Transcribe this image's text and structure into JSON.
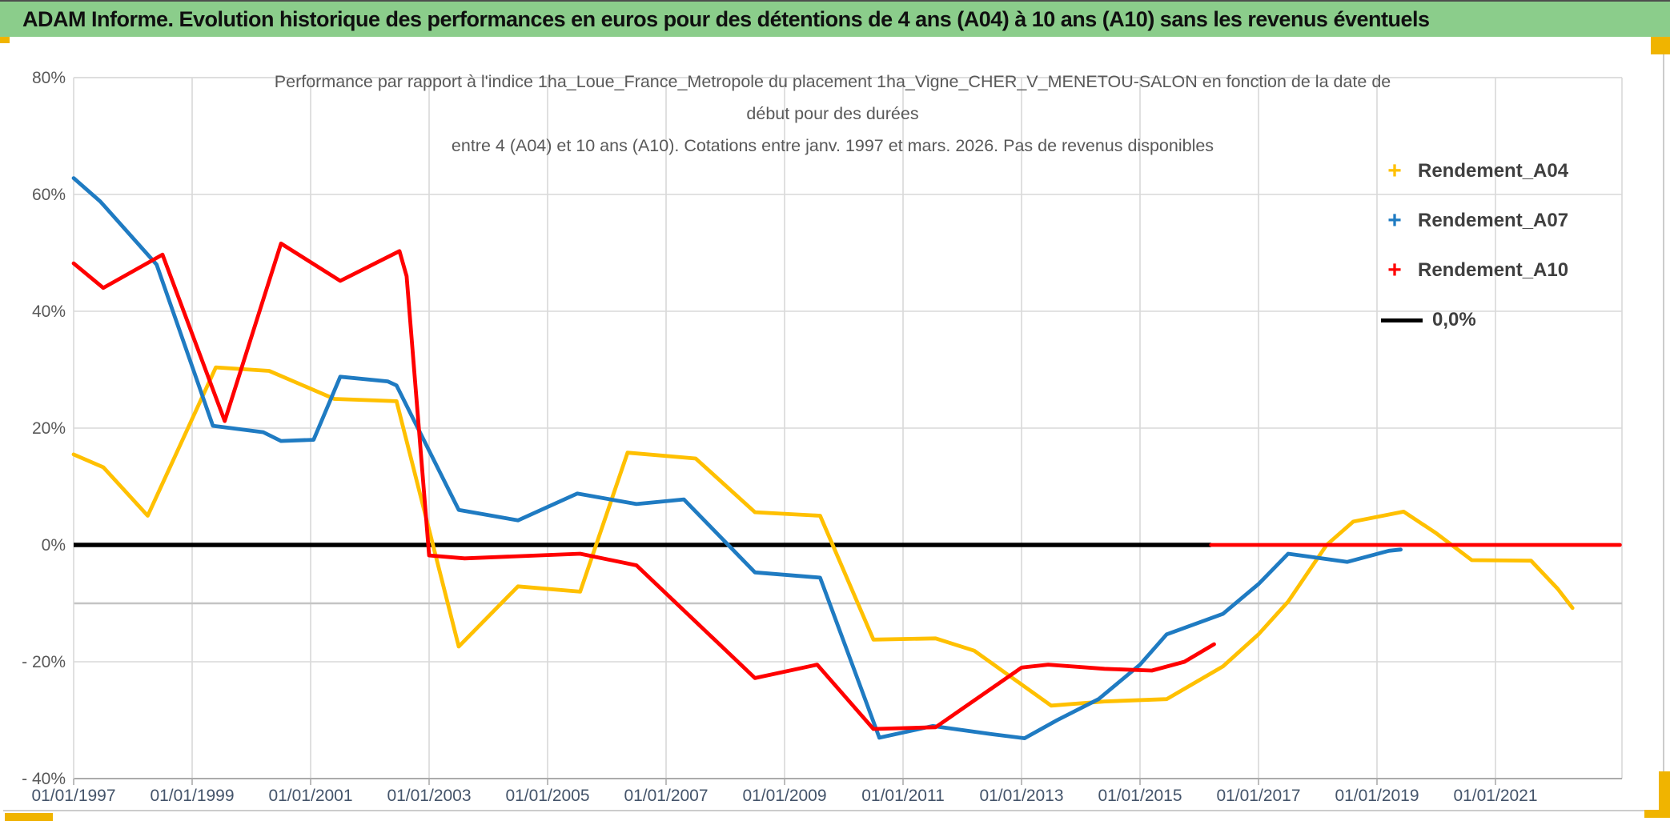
{
  "page": {
    "header": {
      "text": "ADAM Informe. Evolution historique des performances en euros pour des détentions de 4 ans (A04) à 10 ans (A10) sans les revenus éventuels"
    },
    "colors": {
      "header_bg": "#8BCD8B",
      "header_text": "#101010",
      "accent_gold": "#F0B400",
      "title_text": "#595959",
      "axis_text": "#595959",
      "date_text": "#44546A",
      "gridline": "#D9D9D9",
      "minor_line": "#C4C4C4",
      "axis_line": "#ABABAB",
      "zero_line": "#000000"
    }
  },
  "chart_data": {
    "type": "line",
    "title_lines": [
      "Performance par rapport à l'indice 1ha_Loue_France_Metropole  du placement 1ha_Vigne_CHER_V_MENETOU-SALON en fonction de la date de",
      "début pour des durées",
      "entre 4 (A04) et 10 ans (A10). Cotations entre janv. 1997 et mars. 2026. Pas de revenus disponibles"
    ],
    "xlabel": "",
    "ylabel": "",
    "x_tick_years": [
      1997,
      1999,
      2001,
      2003,
      2005,
      2007,
      2009,
      2011,
      2013,
      2015,
      2017,
      2019,
      2021
    ],
    "x_tick_labels": [
      "01/01/1997",
      "01/01/1999",
      "01/01/2001",
      "01/01/2003",
      "01/01/2005",
      "01/01/2007",
      "01/01/2009",
      "01/01/2011",
      "01/01/2013",
      "01/01/2015",
      "01/01/2017",
      "01/01/2019",
      "01/01/2021"
    ],
    "y_ticks": [
      {
        "value": 80,
        "label": "80%"
      },
      {
        "value": 60,
        "label": "60%"
      },
      {
        "value": 40,
        "label": "40%"
      },
      {
        "value": 20,
        "label": "20%"
      },
      {
        "value": 0,
        "label": "0%"
      },
      {
        "value": -20,
        "label": "- 20%"
      },
      {
        "value": -40,
        "label": "- 40%"
      }
    ],
    "ylim": [
      -40,
      80
    ],
    "xlim_years": [
      1997.0,
      2023.15
    ],
    "gridlines_pct": [
      80,
      60,
      40,
      20,
      -20
    ],
    "minor_line_pct": -10,
    "axis_bottom_pct": -40,
    "grid_on": true,
    "legend_position": "right",
    "zero_reference": {
      "label": "0,0%",
      "black_segment_end_year": 2016.2
    },
    "legend": [
      {
        "label": "Rendement_A04",
        "marker": "+",
        "color": "#FFC000"
      },
      {
        "label": "Rendement_A07",
        "marker": "+",
        "color": "#1F7BC2"
      },
      {
        "label": "Rendement_A10",
        "marker": "+",
        "color": "#FF0000"
      },
      {
        "label": "0,0%",
        "marker": "line",
        "color": "#000000"
      }
    ],
    "series": [
      {
        "name": "Rendement_A04",
        "color": "#FFC000",
        "points": [
          [
            1997.0,
            15.5
          ],
          [
            1997.5,
            13.3
          ],
          [
            1998.25,
            5.0
          ],
          [
            1999.4,
            30.4
          ],
          [
            2000.3,
            29.8
          ],
          [
            2001.4,
            25.0
          ],
          [
            2002.45,
            24.6
          ],
          [
            2003.5,
            -17.4
          ],
          [
            2004.5,
            -7.1
          ],
          [
            2005.55,
            -8.0
          ],
          [
            2006.35,
            15.8
          ],
          [
            2007.5,
            14.8
          ],
          [
            2008.5,
            5.6
          ],
          [
            2009.6,
            5.0
          ],
          [
            2010.5,
            -16.2
          ],
          [
            2011.55,
            -16.0
          ],
          [
            2012.2,
            -18.1
          ],
          [
            2013.5,
            -27.5
          ],
          [
            2014.4,
            -26.8
          ],
          [
            2015.45,
            -26.4
          ],
          [
            2016.4,
            -20.8
          ],
          [
            2017.0,
            -15.3
          ],
          [
            2017.5,
            -9.7
          ],
          [
            2018.15,
            0.0
          ],
          [
            2018.6,
            4.0
          ],
          [
            2019.45,
            5.7
          ],
          [
            2020.0,
            2.0
          ],
          [
            2020.6,
            -2.6
          ],
          [
            2021.6,
            -2.7
          ],
          [
            2022.05,
            -7.5
          ],
          [
            2022.3,
            -10.8
          ]
        ]
      },
      {
        "name": "Rendement_A07",
        "color": "#1F7BC2",
        "points": [
          [
            1997.0,
            62.8
          ],
          [
            1997.45,
            58.8
          ],
          [
            1998.4,
            48.0
          ],
          [
            1999.35,
            20.4
          ],
          [
            2000.2,
            19.3
          ],
          [
            2000.5,
            17.8
          ],
          [
            2001.05,
            18.0
          ],
          [
            2001.5,
            28.8
          ],
          [
            2002.3,
            28.0
          ],
          [
            2002.45,
            27.3
          ],
          [
            2003.5,
            6.0
          ],
          [
            2004.5,
            4.2
          ],
          [
            2005.5,
            8.8
          ],
          [
            2006.5,
            7.0
          ],
          [
            2007.3,
            7.8
          ],
          [
            2008.5,
            -4.7
          ],
          [
            2009.6,
            -5.6
          ],
          [
            2010.6,
            -33.0
          ],
          [
            2011.5,
            -31.0
          ],
          [
            2012.5,
            -32.4
          ],
          [
            2013.05,
            -33.1
          ],
          [
            2013.6,
            -30.0
          ],
          [
            2014.3,
            -26.4
          ],
          [
            2015.0,
            -20.5
          ],
          [
            2015.45,
            -15.3
          ],
          [
            2016.4,
            -11.8
          ],
          [
            2017.0,
            -6.7
          ],
          [
            2017.5,
            -1.5
          ],
          [
            2018.5,
            -2.9
          ],
          [
            2019.2,
            -1.0
          ],
          [
            2019.4,
            -0.8
          ]
        ]
      },
      {
        "name": "Rendement_A10",
        "color": "#FF0000",
        "points": [
          [
            1997.0,
            48.2
          ],
          [
            1997.5,
            44.0
          ],
          [
            1998.5,
            49.7
          ],
          [
            1999.55,
            21.2
          ],
          [
            2000.5,
            51.6
          ],
          [
            2001.5,
            45.2
          ],
          [
            2002.5,
            50.3
          ],
          [
            2002.62,
            46.0
          ],
          [
            2003.0,
            -1.8
          ],
          [
            2003.6,
            -2.3
          ],
          [
            2005.55,
            -1.5
          ],
          [
            2006.5,
            -3.5
          ],
          [
            2008.5,
            -22.8
          ],
          [
            2009.55,
            -20.5
          ],
          [
            2010.5,
            -31.5
          ],
          [
            2011.55,
            -31.2
          ],
          [
            2013.0,
            -21.0
          ],
          [
            2013.45,
            -20.5
          ],
          [
            2014.4,
            -21.2
          ],
          [
            2015.2,
            -21.5
          ],
          [
            2015.75,
            -20.0
          ],
          [
            2016.25,
            -17.0
          ]
        ]
      },
      {
        "name": "Rendement_A10_zero",
        "color": "#FF0000",
        "points": [
          [
            2016.2,
            0.0
          ],
          [
            2023.1,
            0.0
          ]
        ]
      }
    ]
  }
}
